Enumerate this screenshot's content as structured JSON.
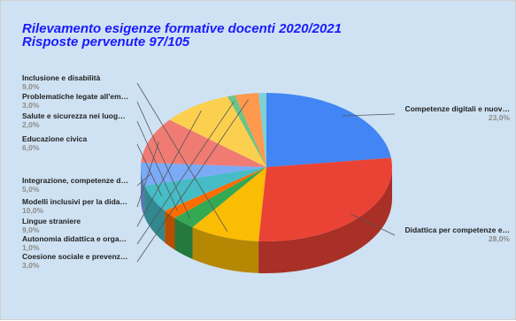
{
  "chart_data": {
    "type": "pie",
    "title": "Rilevamento esigenze formative docenti 2020/2021",
    "subtitle": "Risposte pervenute 97/105",
    "slices": [
      {
        "label": "Competenze digitali e nuov…",
        "value": 23.0,
        "pct_label": "23,0%",
        "color": "#4285f4"
      },
      {
        "label": "Didattica per competenze e…",
        "value": 28.0,
        "pct_label": "28,0%",
        "color": "#ea4335"
      },
      {
        "label": "Inclusione e disabilità",
        "value": 9.0,
        "pct_label": "9,0%",
        "color": "#fbbc04"
      },
      {
        "label": "Problematiche legate all'em…",
        "value": 3.0,
        "pct_label": "3,0%",
        "color": "#34a853"
      },
      {
        "label": "Salute e sicurezza nei luog…",
        "value": 2.0,
        "pct_label": "2,0%",
        "color": "#ff6d01"
      },
      {
        "label": "Educazione civica",
        "value": 6.0,
        "pct_label": "6,0%",
        "color": "#46bdc6"
      },
      {
        "label": "Integrazione, competenze d…",
        "value": 5.0,
        "pct_label": "5,0%",
        "color": "#7baaf7"
      },
      {
        "label": "Modelli inclusivi per la dida…",
        "value": 10.0,
        "pct_label": "10,0%",
        "color": "#f07b72"
      },
      {
        "label": "Lingue straniere",
        "value": 9.0,
        "pct_label": "9,0%",
        "color": "#fcd04f"
      },
      {
        "label": "Autonomia didattica e orga…",
        "value": 1.0,
        "pct_label": "1,0%",
        "color": "#71c287"
      },
      {
        "label": "Coesione sociale e prevenz…",
        "value": 3.0,
        "pct_label": "3,0%",
        "color": "#ff994d"
      },
      {
        "label": "",
        "value": 1.0,
        "pct_label": "",
        "color": "#7ed1d7"
      }
    ]
  }
}
